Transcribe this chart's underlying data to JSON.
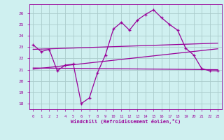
{
  "xlabel": "Windchill (Refroidissement éolien,°C)",
  "bg_color": "#cff0f0",
  "grid_color": "#aacccc",
  "line_color": "#990099",
  "marker": "+",
  "xlim": [
    -0.5,
    23.5
  ],
  "ylim": [
    17.5,
    26.8
  ],
  "xticks": [
    0,
    1,
    2,
    3,
    4,
    5,
    6,
    7,
    8,
    9,
    10,
    11,
    12,
    13,
    14,
    15,
    16,
    17,
    18,
    19,
    20,
    21,
    22,
    23
  ],
  "yticks": [
    18,
    19,
    20,
    21,
    22,
    23,
    24,
    25,
    26
  ],
  "line1_x": [
    0,
    1,
    2,
    3,
    4,
    5,
    6,
    7,
    8,
    9,
    10,
    11,
    12,
    13,
    14,
    15,
    16,
    17,
    18,
    19,
    20,
    21,
    22,
    23
  ],
  "line1_y": [
    23.2,
    22.6,
    22.8,
    20.9,
    21.4,
    21.5,
    18.0,
    18.5,
    20.7,
    22.3,
    24.6,
    25.2,
    24.5,
    25.4,
    25.9,
    26.3,
    25.6,
    25.0,
    24.5,
    22.9,
    22.3,
    21.1,
    20.9,
    20.9
  ],
  "line2_x": [
    0,
    23
  ],
  "line2_y": [
    22.8,
    23.35
  ],
  "line3_x": [
    0,
    23
  ],
  "line3_y": [
    21.15,
    21.0
  ],
  "line4_x": [
    0,
    23
  ],
  "line4_y": [
    21.05,
    22.85
  ]
}
